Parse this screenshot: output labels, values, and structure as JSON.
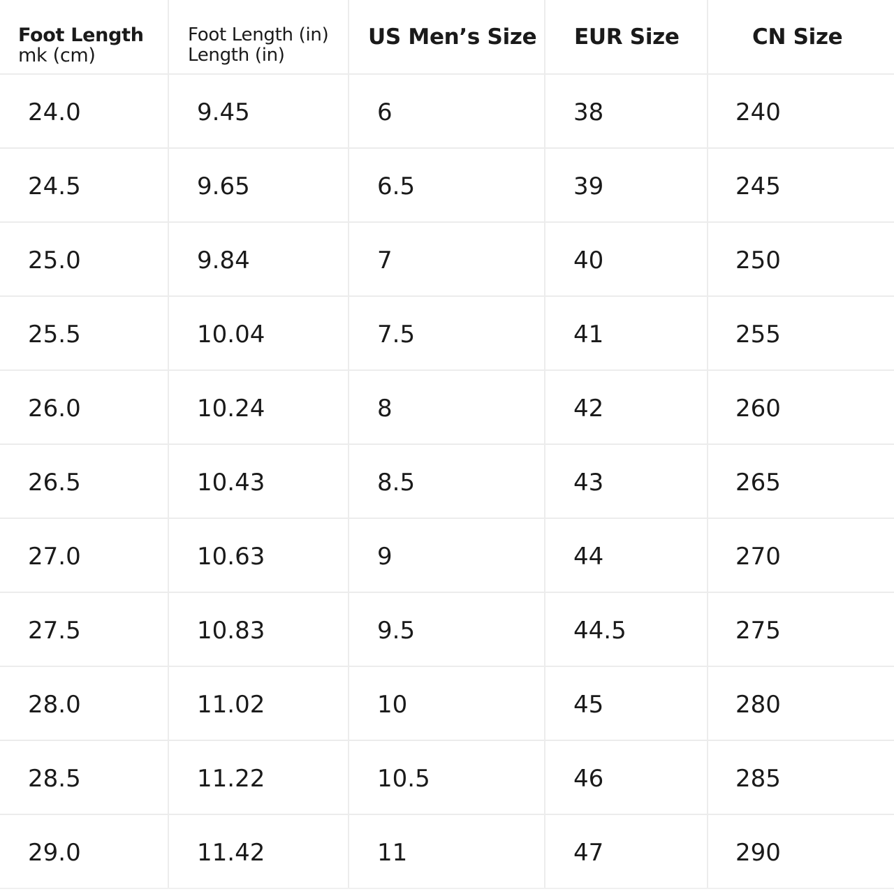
{
  "chart_data": {
    "type": "table",
    "columns": [
      {
        "label": "Foot Length",
        "sub_label": "mk (cm)"
      },
      {
        "label": "Foot Length (in)",
        "sub_label": "Length (in)"
      },
      {
        "label": "US Men’s Size"
      },
      {
        "label": "EUR Size"
      },
      {
        "label": "CN Size"
      }
    ],
    "rows": [
      [
        "24.0",
        "9.45",
        "6",
        "38",
        "240"
      ],
      [
        "24.5",
        "9.65",
        "6.5",
        "39",
        "245"
      ],
      [
        "25.0",
        "9.84",
        "7",
        "40",
        "250"
      ],
      [
        "25.5",
        "10.04",
        "7.5",
        "41",
        "255"
      ],
      [
        "26.0",
        "10.24",
        "8",
        "42",
        "260"
      ],
      [
        "26.5",
        "10.43",
        "8.5",
        "43",
        "265"
      ],
      [
        "27.0",
        "10.63",
        "9",
        "44",
        "270"
      ],
      [
        "27.5",
        "10.83",
        "9.5",
        "44.5",
        "275"
      ],
      [
        "28.0",
        "11.02",
        "10",
        "45",
        "280"
      ],
      [
        "28.5",
        "11.22",
        "10.5",
        "46",
        "285"
      ],
      [
        "29.0",
        "11.42",
        "11",
        "47",
        "290"
      ]
    ]
  }
}
